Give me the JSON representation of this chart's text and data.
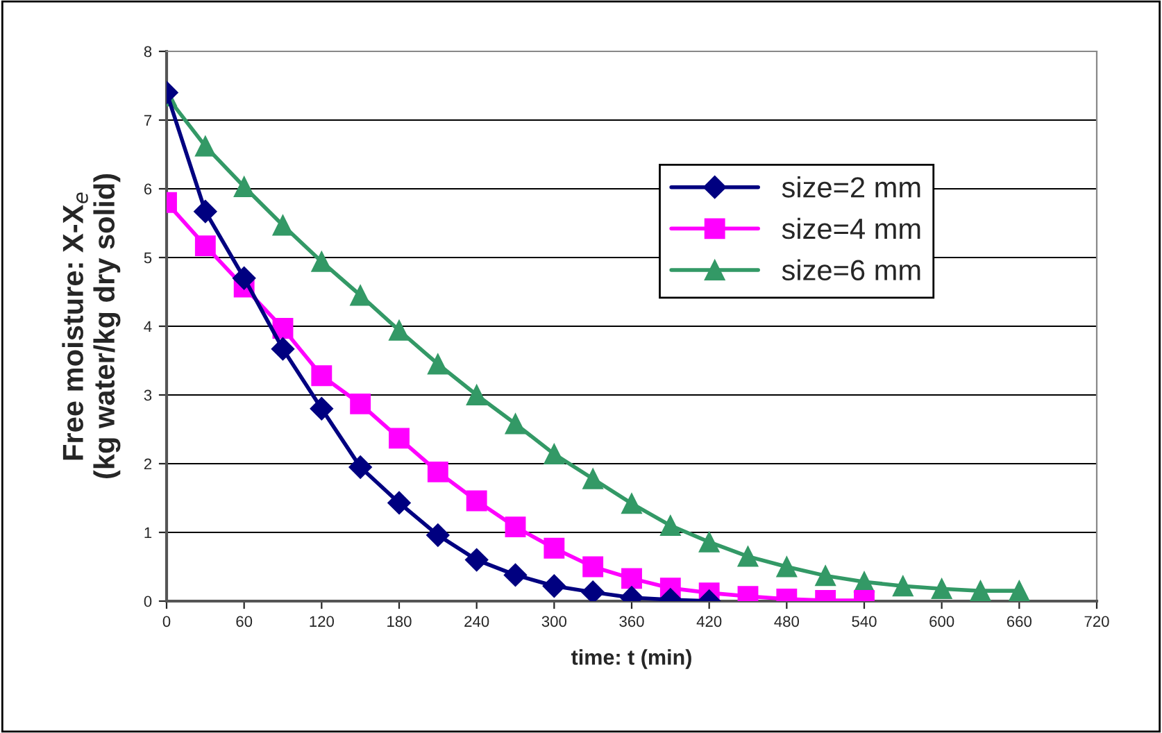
{
  "chart_data": {
    "type": "line",
    "xlabel": "time: t (min)",
    "ylabel": "Free moisture: X-X$_{e}$\n(kg water/kg dry solid)",
    "xlim": [
      0,
      720
    ],
    "xticks": [
      0,
      60,
      120,
      180,
      240,
      300,
      360,
      420,
      480,
      540,
      600,
      660,
      720
    ],
    "ylim": [
      0,
      8
    ],
    "yticks": [
      0,
      1,
      2,
      3,
      4,
      5,
      6,
      7,
      8
    ],
    "grid": "y",
    "legend": "upper right",
    "series": [
      {
        "name": "size=2 mm",
        "color": "#000080",
        "marker": "diamond",
        "x": [
          0,
          30,
          60,
          90,
          120,
          150,
          180,
          210,
          240,
          270,
          300,
          330,
          360,
          390,
          420
        ],
        "values": [
          7.4,
          5.67,
          4.7,
          3.67,
          2.8,
          1.95,
          1.43,
          0.96,
          0.6,
          0.38,
          0.22,
          0.13,
          0.05,
          0.02,
          0.0
        ]
      },
      {
        "name": "size=4 mm",
        "color": "#ff00ff",
        "marker": "square",
        "x": [
          0,
          30,
          60,
          90,
          120,
          150,
          180,
          210,
          240,
          270,
          300,
          330,
          360,
          390,
          420,
          450,
          480,
          510,
          540
        ],
        "values": [
          5.8,
          5.17,
          4.57,
          3.97,
          3.28,
          2.87,
          2.37,
          1.88,
          1.46,
          1.08,
          0.77,
          0.5,
          0.33,
          0.19,
          0.12,
          0.07,
          0.03,
          0.01,
          0.01
        ]
      },
      {
        "name": "size=6 mm",
        "color": "#339966",
        "marker": "triangle",
        "x": [
          0,
          30,
          60,
          90,
          120,
          150,
          180,
          210,
          240,
          270,
          300,
          330,
          360,
          390,
          420,
          450,
          480,
          510,
          540,
          570,
          600,
          630,
          660
        ],
        "values": [
          7.35,
          6.62,
          6.03,
          5.47,
          4.94,
          4.45,
          3.94,
          3.45,
          3.0,
          2.58,
          2.14,
          1.78,
          1.42,
          1.1,
          0.86,
          0.65,
          0.5,
          0.37,
          0.28,
          0.22,
          0.18,
          0.15,
          0.15
        ]
      }
    ]
  }
}
